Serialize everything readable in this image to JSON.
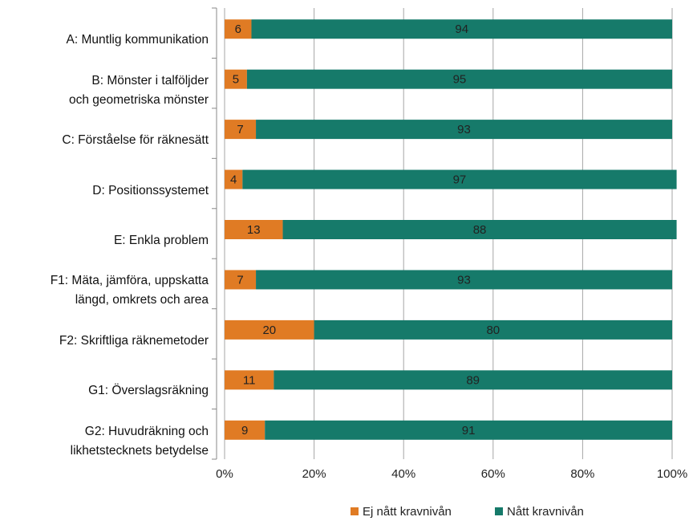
{
  "chart_data": {
    "type": "stacked_barh",
    "categories": [
      "A: Muntlig kommunikation",
      "B: Mönster i talföljder\noch geometriska mönster",
      "C: Förståelse för räknesätt",
      "D: Positionssystemet",
      "E: Enkla problem",
      "F1: Mäta, jämföra, uppskatta\nlängd, omkrets och area",
      "F2: Skriftliga räknemetoder",
      "G1: Överslagsräkning",
      "G2: Huvudräkning och\nlikhetstecknets betydelse"
    ],
    "series": [
      {
        "name": "Ej nått kravnivån",
        "color": "#e07b24",
        "values": [
          6,
          5,
          7,
          4,
          13,
          7,
          20,
          11,
          9
        ]
      },
      {
        "name": "Nått kravnivån",
        "color": "#167a6a",
        "values": [
          94,
          95,
          93,
          97,
          88,
          93,
          80,
          89,
          91
        ]
      }
    ],
    "xlim": [
      0,
      100
    ],
    "xticks": [
      {
        "value": 0,
        "label": "0%"
      },
      {
        "value": 20,
        "label": "20%"
      },
      {
        "value": 40,
        "label": "40%"
      },
      {
        "value": 60,
        "label": "60%"
      },
      {
        "value": 80,
        "label": "80%"
      },
      {
        "value": 100,
        "label": "100%"
      }
    ],
    "grid": true,
    "legend": "bottom"
  }
}
